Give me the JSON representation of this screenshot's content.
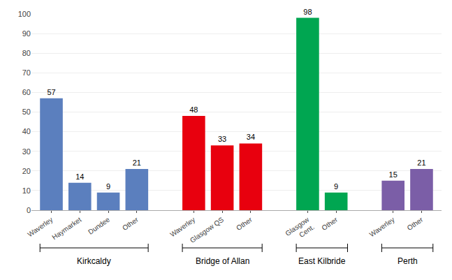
{
  "chart_data": {
    "type": "bar",
    "series": [
      {
        "name": "Kirkcaldy",
        "color": "#5b7fbe",
        "categories": [
          "Waverley",
          "Haymarket",
          "Dundee",
          "Other"
        ],
        "values": [
          57,
          14,
          9,
          21
        ]
      },
      {
        "name": "Bridge of Allan",
        "color": "#e8000e",
        "categories": [
          "Waverley",
          "Glasgow QS",
          "Other"
        ],
        "values": [
          48,
          33,
          34
        ]
      },
      {
        "name": "East Kilbride",
        "color": "#00a651",
        "categories": [
          "Glasgow\nCent.",
          "Other"
        ],
        "values": [
          98,
          9
        ]
      },
      {
        "name": "Perth",
        "color": "#7b5ea7",
        "categories": [
          "Waverley",
          "Other"
        ],
        "values": [
          15,
          21
        ]
      }
    ],
    "ylim": [
      0,
      100
    ],
    "yticks": [
      0,
      10,
      20,
      30,
      40,
      50,
      60,
      70,
      80,
      90,
      100
    ],
    "grid": true,
    "data_labels": true
  }
}
